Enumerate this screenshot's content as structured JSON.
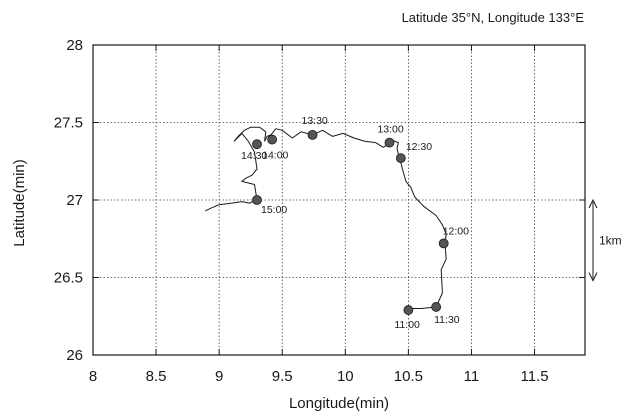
{
  "chart_data": {
    "type": "line",
    "header": "Latitude 35°N, Longitude 133°E",
    "xlabel": "Longitude(min)",
    "ylabel": "Latitude(min)",
    "xlim": [
      8,
      11.9
    ],
    "ylim": [
      26,
      28
    ],
    "xticks": [
      "8",
      "8.5",
      "9",
      "9.5",
      "10",
      "10.5",
      "11",
      "11.5"
    ],
    "yticks": [
      "26",
      "26.5",
      "27",
      "27.5",
      "28"
    ],
    "grid": true,
    "scale_bar": {
      "label": "1km",
      "from_y": 26.48,
      "to_y": 27.0
    },
    "track": {
      "x": [
        10.5,
        10.47,
        10.52,
        10.6,
        10.72,
        10.77,
        10.76,
        10.8,
        10.79,
        10.8,
        10.77,
        10.72,
        10.62,
        10.55,
        10.52,
        10.48,
        10.46,
        10.44,
        10.43,
        10.42,
        10.41,
        10.42,
        10.39,
        10.36,
        10.3,
        10.24,
        10.15,
        10.07,
        9.98,
        9.9,
        9.82,
        9.74,
        9.65,
        9.58,
        9.5,
        9.45,
        9.41,
        9.38,
        9.36,
        9.37,
        9.32,
        9.25,
        9.2,
        9.15,
        9.12,
        9.18,
        9.23,
        9.28,
        9.3,
        9.26,
        9.21,
        9.18,
        9.28,
        9.3,
        9.24,
        9.18,
        9.1,
        9.0,
        8.94,
        8.89
      ],
      "y": [
        26.28,
        26.3,
        26.3,
        26.3,
        26.31,
        26.4,
        26.55,
        26.62,
        26.72,
        26.78,
        26.84,
        26.9,
        26.96,
        27.02,
        27.08,
        27.12,
        27.18,
        27.24,
        27.27,
        27.3,
        27.33,
        27.37,
        27.38,
        27.37,
        27.34,
        27.37,
        27.38,
        27.4,
        27.43,
        27.41,
        27.45,
        27.42,
        27.44,
        27.4,
        27.45,
        27.46,
        27.42,
        27.41,
        27.38,
        27.44,
        27.47,
        27.47,
        27.45,
        27.41,
        27.38,
        27.43,
        27.38,
        27.31,
        27.2,
        27.16,
        27.14,
        27.12,
        27.1,
        27.0,
        26.98,
        26.99,
        26.98,
        26.97,
        26.95,
        26.93
      ]
    },
    "points": [
      {
        "time": "11:00",
        "x": 10.5,
        "y": 26.29
      },
      {
        "time": "11:30",
        "x": 10.72,
        "y": 26.31
      },
      {
        "time": "12:00",
        "x": 10.78,
        "y": 26.72
      },
      {
        "time": "12:30",
        "x": 10.44,
        "y": 27.27
      },
      {
        "time": "13:00",
        "x": 10.35,
        "y": 27.37
      },
      {
        "time": "13:30",
        "x": 9.74,
        "y": 27.42
      },
      {
        "time": "14:00",
        "x": 9.42,
        "y": 27.39
      },
      {
        "time": "14:30",
        "x": 9.3,
        "y": 27.36
      },
      {
        "time": "15:00",
        "x": 9.3,
        "y": 27.0
      }
    ]
  }
}
